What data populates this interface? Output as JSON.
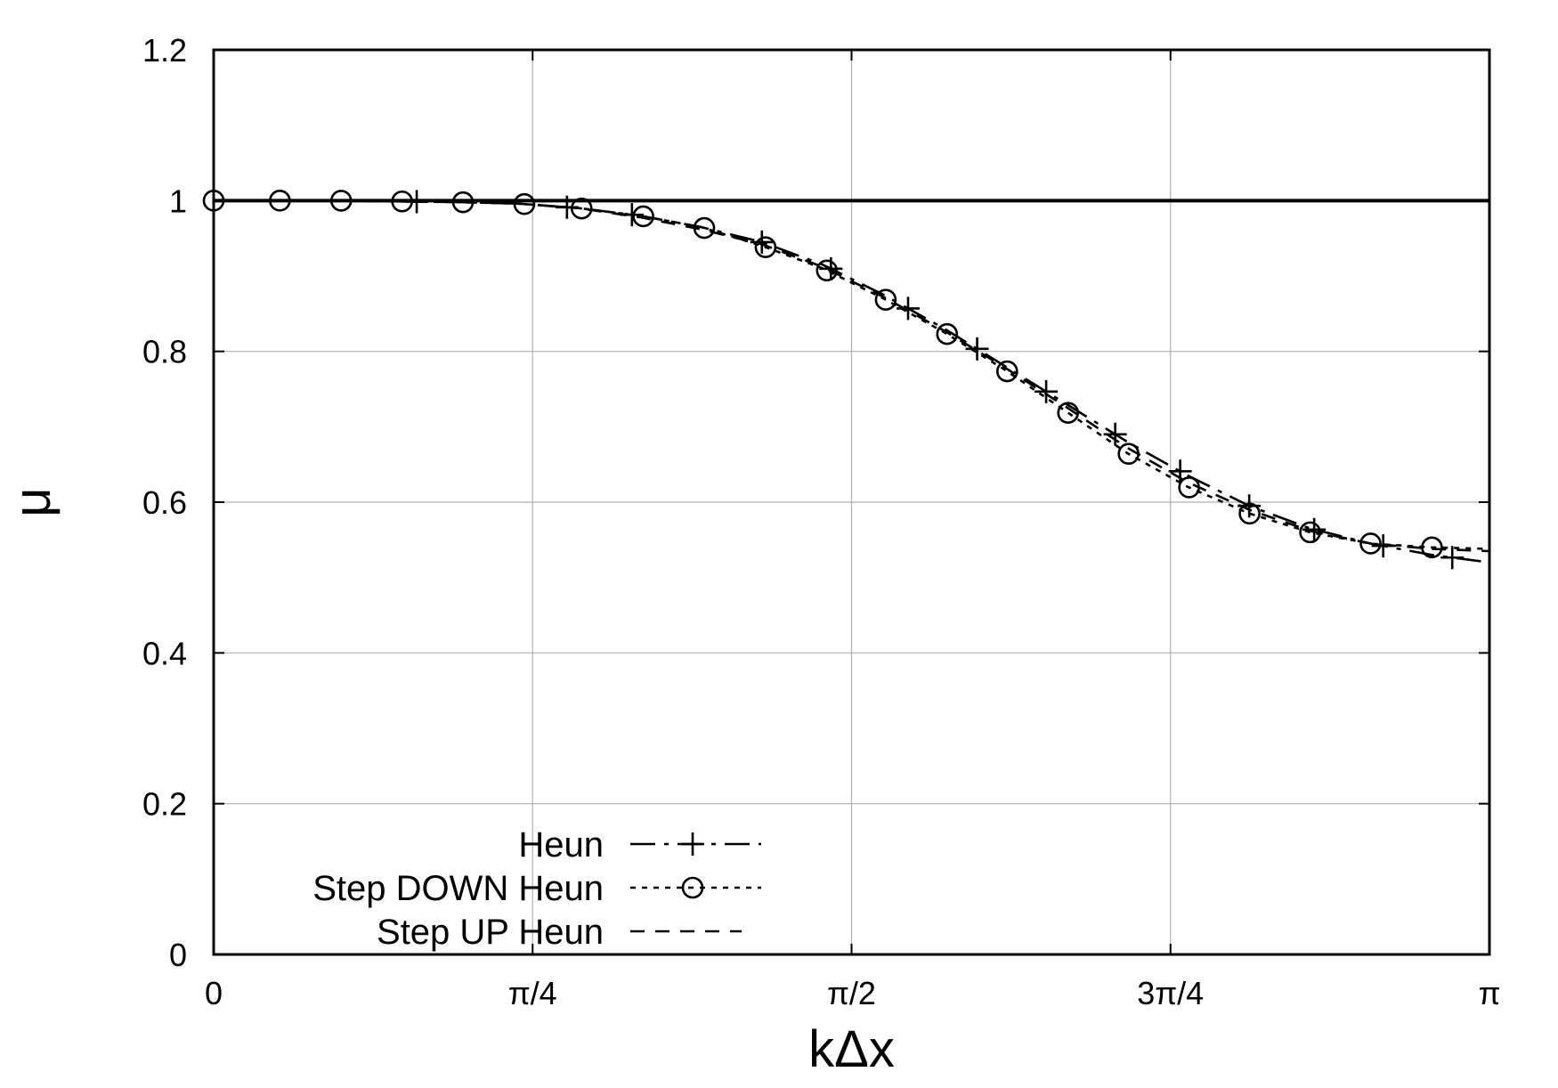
{
  "chart_data": {
    "type": "line",
    "xlabel": "kΔx",
    "ylabel": "μ",
    "xlim": [
      0,
      3.14159
    ],
    "ylim": [
      0,
      1.2
    ],
    "x_ticks": [
      {
        "value": 0,
        "label": "0"
      },
      {
        "value": 0.7854,
        "label": "π/4"
      },
      {
        "value": 1.5708,
        "label": "π/2"
      },
      {
        "value": 2.3562,
        "label": "3π/4"
      },
      {
        "value": 3.14159,
        "label": "π"
      }
    ],
    "y_ticks": [
      {
        "value": 0,
        "label": "0"
      },
      {
        "value": 0.2,
        "label": "0.2"
      },
      {
        "value": 0.4,
        "label": "0.4"
      },
      {
        "value": 0.6,
        "label": "0.6"
      },
      {
        "value": 0.8,
        "label": "0.8"
      },
      {
        "value": 1.0,
        "label": "1"
      },
      {
        "value": 1.2,
        "label": "1.2"
      }
    ],
    "grid": true,
    "legend_position": "bottom-left",
    "reference_line": {
      "y": 1.0
    },
    "series": [
      {
        "name": "Heun",
        "style": "dash-dot",
        "marker": "plus",
        "x": [
          0.0,
          0.15,
          0.3,
          0.45,
          0.6,
          0.75,
          0.9,
          1.05,
          1.2,
          1.35,
          1.5,
          1.65,
          1.8,
          1.95,
          2.1,
          2.25,
          2.4,
          2.55,
          2.7,
          2.85,
          3.0,
          3.14159
        ],
        "y": [
          1.0,
          1.0,
          1.0,
          0.999,
          0.998,
          0.996,
          0.99,
          0.98,
          0.965,
          0.945,
          0.915,
          0.875,
          0.83,
          0.78,
          0.73,
          0.68,
          0.635,
          0.595,
          0.565,
          0.545,
          0.53,
          0.52
        ],
        "marker_x": [
          0.5,
          0.87,
          1.03,
          1.35,
          1.52,
          1.71,
          1.88,
          2.05,
          2.22,
          2.38,
          2.55,
          2.71,
          2.88,
          3.05
        ]
      },
      {
        "name": "Step DOWN Heun",
        "style": "dotted",
        "marker": "circle",
        "x": [
          0.0,
          0.15,
          0.3,
          0.45,
          0.6,
          0.75,
          0.9,
          1.05,
          1.2,
          1.35,
          1.5,
          1.65,
          1.8,
          1.95,
          2.1,
          2.25,
          2.4,
          2.55,
          2.7,
          2.85,
          3.0,
          3.14159
        ],
        "y": [
          1.0,
          1.0,
          1.0,
          0.999,
          0.998,
          0.996,
          0.99,
          0.98,
          0.965,
          0.94,
          0.91,
          0.87,
          0.825,
          0.775,
          0.72,
          0.665,
          0.62,
          0.585,
          0.56,
          0.545,
          0.54,
          0.538
        ],
        "marker_x": [
          0.0,
          0.163,
          0.314,
          0.464,
          0.614,
          0.765,
          0.906,
          1.058,
          1.208,
          1.359,
          1.51,
          1.655,
          1.806,
          1.954,
          2.104,
          2.253,
          2.402,
          2.551,
          2.7,
          2.849,
          3.0
        ]
      },
      {
        "name": "Step UP Heun",
        "style": "dashed",
        "marker": "none",
        "x": [
          0.0,
          0.15,
          0.3,
          0.45,
          0.6,
          0.75,
          0.9,
          1.05,
          1.2,
          1.35,
          1.5,
          1.65,
          1.8,
          1.95,
          2.1,
          2.25,
          2.4,
          2.55,
          2.7,
          2.85,
          3.0,
          3.14159
        ],
        "y": [
          1.0,
          1.0,
          1.0,
          0.999,
          0.998,
          0.996,
          0.99,
          0.978,
          0.962,
          0.942,
          0.912,
          0.872,
          0.827,
          0.778,
          0.726,
          0.672,
          0.626,
          0.59,
          0.562,
          0.545,
          0.538,
          0.535
        ]
      }
    ]
  }
}
